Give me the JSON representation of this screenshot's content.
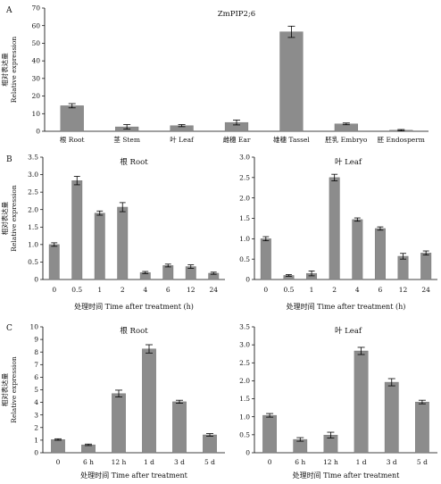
{
  "chart_data": [
    {
      "panel": "A",
      "type": "bar",
      "title": "ZmPIP2;6",
      "ylabel_cn": "相对表达量",
      "ylabel": "Relative expression",
      "xlabel": "",
      "ylim": [
        0,
        70
      ],
      "yticks": [
        "0",
        "10",
        "20",
        "30",
        "40",
        "50",
        "60",
        "70"
      ],
      "categories": [
        "根 Root",
        "茎 Stem",
        "叶 Leaf",
        "雌穗 Ear",
        "雄穗 Tassel",
        "胚乳 Embryo",
        "胚 Endosperm"
      ],
      "values": [
        14.5,
        2.5,
        3.2,
        5.0,
        56.5,
        4.2,
        0.6
      ],
      "errors": [
        1.2,
        1.3,
        0.6,
        1.4,
        3.2,
        0.5,
        0.4
      ],
      "bar_color": "#8c8c8c"
    },
    {
      "panel": "B",
      "type": "bar",
      "title": "根 Root",
      "ylabel_cn": "相对表达量",
      "ylabel": "Relative expression",
      "xlabel": "处理时间 Time after treatment (h)",
      "ylim": [
        0,
        3.5
      ],
      "yticks": [
        "0",
        "0.5",
        "1.0",
        "1.5",
        "2.0",
        "2.5",
        "3.0",
        "3.5"
      ],
      "categories": [
        "0",
        "0.5",
        "1",
        "2",
        "4",
        "6",
        "12",
        "24"
      ],
      "values": [
        1.0,
        2.83,
        1.9,
        2.07,
        0.2,
        0.4,
        0.37,
        0.18
      ],
      "errors": [
        0.05,
        0.12,
        0.06,
        0.13,
        0.03,
        0.04,
        0.05,
        0.03
      ],
      "bar_color": "#8c8c8c"
    },
    {
      "panel": "",
      "type": "bar",
      "title": "叶 Leaf",
      "ylabel_cn": "",
      "ylabel": "",
      "xlabel": "处理时间 Time after treatment (h)",
      "ylim": [
        0,
        3.0
      ],
      "yticks": [
        "0",
        "0.5",
        "1.0",
        "1.5",
        "2.0",
        "2.5",
        "3.0"
      ],
      "categories": [
        "0",
        "0.5",
        "1",
        "2",
        "4",
        "6",
        "12",
        "24"
      ],
      "values": [
        1.0,
        0.1,
        0.15,
        2.5,
        1.47,
        1.25,
        0.57,
        0.65
      ],
      "errors": [
        0.05,
        0.02,
        0.06,
        0.08,
        0.04,
        0.04,
        0.07,
        0.05
      ],
      "bar_color": "#8c8c8c"
    },
    {
      "panel": "C",
      "type": "bar",
      "title": "根 Root",
      "ylabel_cn": "相对表达量",
      "ylabel": "Relative expression",
      "xlabel": "处理时间 Time after treatment",
      "ylim": [
        0,
        10
      ],
      "yticks": [
        "0",
        "1",
        "2",
        "3",
        "4",
        "5",
        "6",
        "7",
        "8",
        "9",
        "10"
      ],
      "categories": [
        "0",
        "6 h",
        "12 h",
        "1 d",
        "3 d",
        "5 d"
      ],
      "values": [
        1.05,
        0.63,
        4.7,
        8.25,
        4.05,
        1.42
      ],
      "errors": [
        0.06,
        0.06,
        0.27,
        0.33,
        0.12,
        0.1
      ],
      "bar_color": "#8c8c8c"
    },
    {
      "panel": "",
      "type": "bar",
      "title": "叶 Leaf",
      "ylabel_cn": "",
      "ylabel": "",
      "xlabel": "处理时间 Time after treatment",
      "ylim": [
        0,
        3.5
      ],
      "yticks": [
        "0",
        "0.5",
        "1.0",
        "1.5",
        "2.0",
        "2.5",
        "3.0",
        "3.5"
      ],
      "categories": [
        "0",
        "6 h",
        "12 h",
        "1 d",
        "3 d",
        "5 d"
      ],
      "values": [
        1.04,
        0.37,
        0.49,
        2.83,
        1.96,
        1.41
      ],
      "errors": [
        0.05,
        0.05,
        0.08,
        0.1,
        0.1,
        0.05
      ],
      "bar_color": "#8c8c8c"
    }
  ]
}
